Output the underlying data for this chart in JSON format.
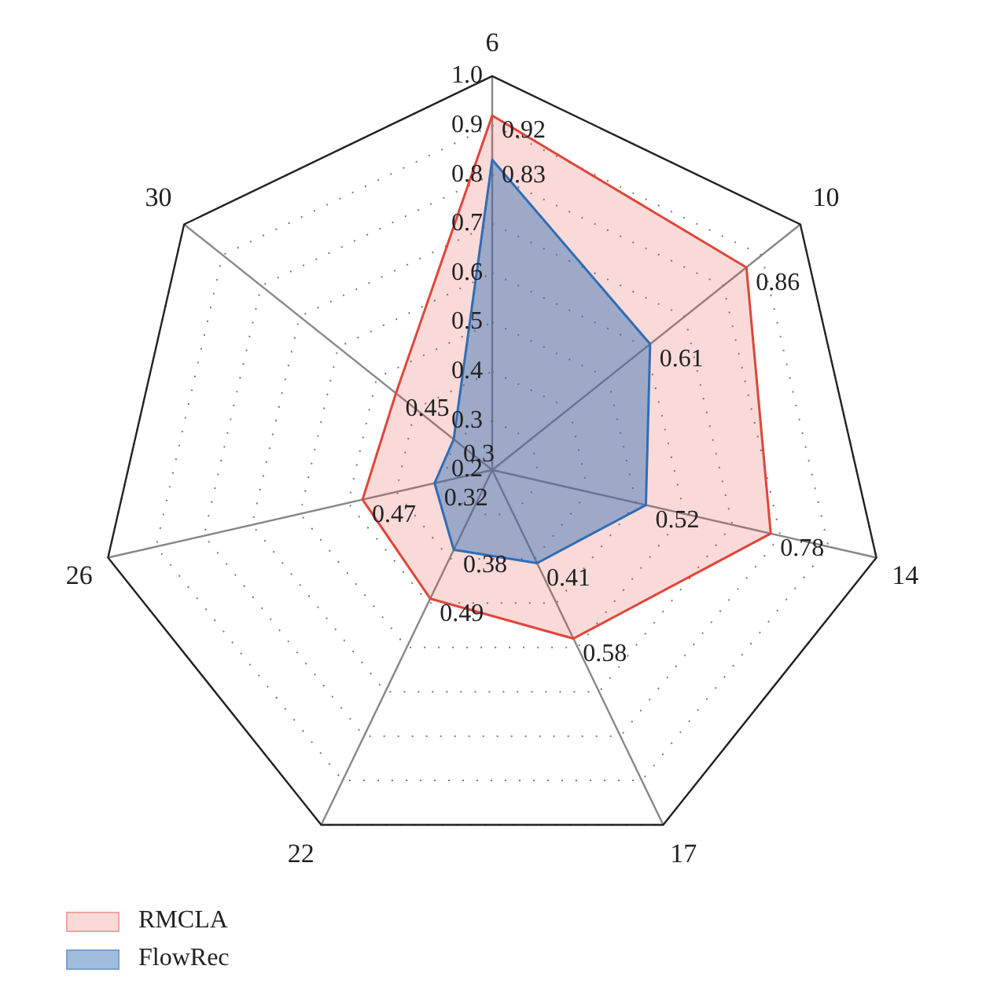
{
  "chart_data": {
    "type": "radar",
    "categories": [
      "6",
      "10",
      "14",
      "17",
      "22",
      "26",
      "30"
    ],
    "series": [
      {
        "name": "RMCLA",
        "color": "#e0453a",
        "values": [
          0.92,
          0.86,
          0.78,
          0.58,
          0.49,
          0.47,
          0.45
        ]
      },
      {
        "name": "FlowRec",
        "color": "#2f6db5",
        "values": [
          0.83,
          0.61,
          0.52,
          0.41,
          0.38,
          0.32,
          0.3
        ]
      }
    ],
    "ylim": [
      0.2,
      1.0
    ],
    "yticks": [
      0.2,
      0.3,
      0.4,
      0.5,
      0.6,
      0.7,
      0.8,
      0.9,
      {
        "value": 1.0,
        "label": "1.0"
      }
    ],
    "data_labels": true,
    "legend": "bottom left",
    "grid": true,
    "marker": "none"
  }
}
